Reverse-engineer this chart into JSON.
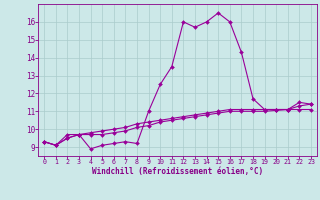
{
  "xlabel": "Windchill (Refroidissement éolien,°C)",
  "bg_color": "#cce8e8",
  "line_color": "#990099",
  "grid_color": "#aacccc",
  "text_color": "#880088",
  "xlim": [
    -0.5,
    23.5
  ],
  "ylim": [
    8.5,
    17.0
  ],
  "xticks": [
    0,
    1,
    2,
    3,
    4,
    5,
    6,
    7,
    8,
    9,
    10,
    11,
    12,
    13,
    14,
    15,
    16,
    17,
    18,
    19,
    20,
    21,
    22,
    23
  ],
  "yticks": [
    9,
    10,
    11,
    12,
    13,
    14,
    15,
    16
  ],
  "curve1": [
    9.3,
    9.1,
    9.7,
    9.7,
    8.9,
    9.1,
    9.2,
    9.3,
    9.2,
    11.0,
    12.5,
    13.5,
    16.0,
    15.7,
    16.0,
    16.5,
    16.0,
    14.3,
    11.7,
    11.1,
    11.1,
    11.1,
    11.5,
    11.4
  ],
  "curve2": [
    9.3,
    9.1,
    9.5,
    9.7,
    9.7,
    9.7,
    9.8,
    9.9,
    10.1,
    10.2,
    10.4,
    10.5,
    10.6,
    10.7,
    10.8,
    10.9,
    11.0,
    11.0,
    11.0,
    11.0,
    11.05,
    11.1,
    11.1,
    11.1
  ],
  "curve3": [
    9.3,
    9.1,
    9.5,
    9.7,
    9.8,
    9.9,
    10.0,
    10.1,
    10.3,
    10.4,
    10.5,
    10.6,
    10.7,
    10.8,
    10.9,
    11.0,
    11.1,
    11.1,
    11.1,
    11.1,
    11.1,
    11.1,
    11.3,
    11.4
  ]
}
